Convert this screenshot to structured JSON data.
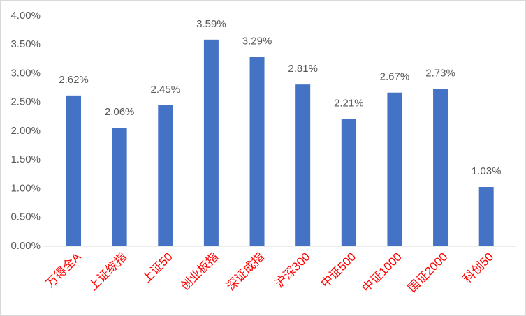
{
  "chart_data": {
    "type": "bar",
    "categories": [
      "万得全A",
      "上证综指",
      "上证50",
      "创业板指",
      "深证成指",
      "沪深300",
      "中证500",
      "中证1000",
      "国证2000",
      "科创50"
    ],
    "values": [
      2.62,
      2.06,
      2.45,
      3.59,
      3.29,
      2.81,
      2.21,
      2.67,
      2.73,
      1.03
    ],
    "value_labels": [
      "2.62%",
      "2.06%",
      "2.45%",
      "3.59%",
      "3.29%",
      "2.81%",
      "2.21%",
      "2.67%",
      "2.73%",
      "1.03%"
    ],
    "color": "#4472c4",
    "ylim": [
      0,
      4
    ],
    "yticks": [
      {
        "value": 0,
        "label": "0.00%"
      },
      {
        "value": 0.5,
        "label": "0.50%"
      },
      {
        "value": 1,
        "label": "1.00%"
      },
      {
        "value": 1.5,
        "label": "1.50%"
      },
      {
        "value": 2,
        "label": "2.00%"
      },
      {
        "value": 2.5,
        "label": "2.50%"
      },
      {
        "value": 3,
        "label": "3.00%"
      },
      {
        "value": 3.5,
        "label": "3.50%"
      },
      {
        "value": 4,
        "label": "4.00%"
      }
    ],
    "grid": false
  }
}
